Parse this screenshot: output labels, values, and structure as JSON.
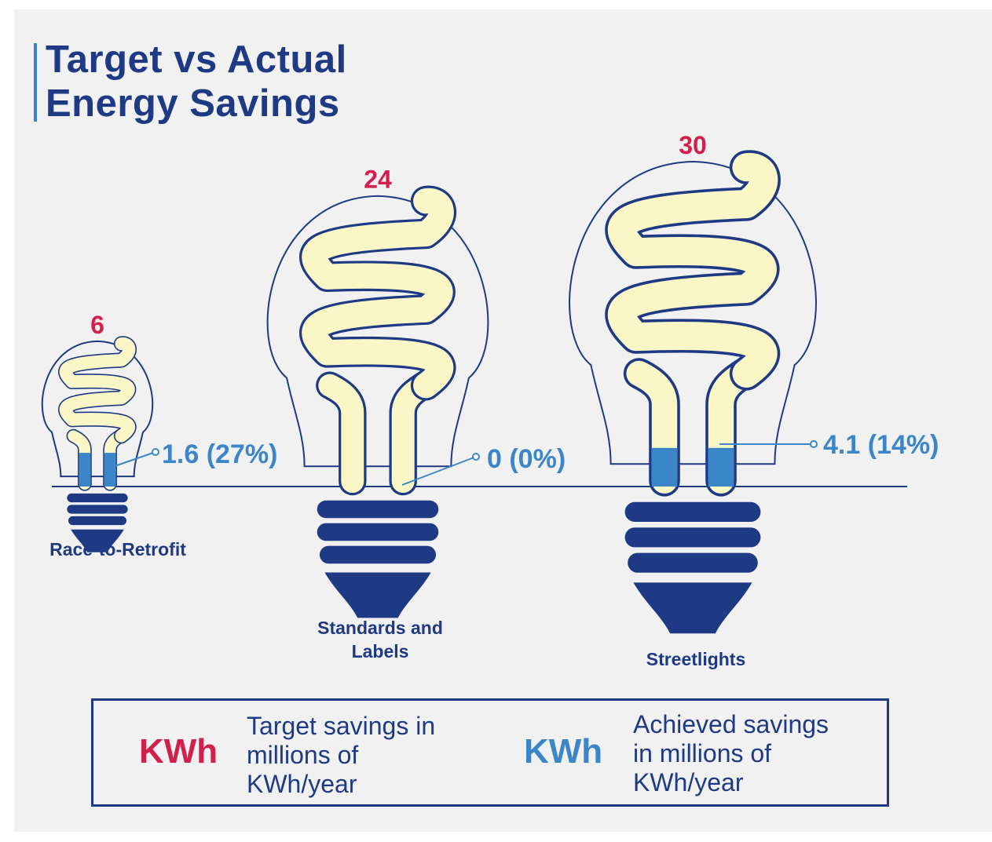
{
  "title": {
    "line1": "Target vs Actual",
    "line2": "Energy Savings"
  },
  "colors": {
    "background": "#f1f1f1",
    "navy": "#1e3a84",
    "target_red": "#d21f4d",
    "achieved_blue": "#3b86c8",
    "coil_fill": "#fbf6c6"
  },
  "chart_data": {
    "type": "bar",
    "encoding": "bulb size proportional to target; filled coil portion shows achieved share",
    "categories": [
      "Race-to-Retrofit",
      "Standards and Labels",
      "Streetlights"
    ],
    "series": [
      {
        "name": "Target savings in millions of KWh/year",
        "values": [
          6,
          24,
          30
        ],
        "color": "#d21f4d"
      },
      {
        "name": "Achieved savings in millions of KWh/year",
        "values": [
          1.6,
          0,
          4.1
        ],
        "color": "#3b86c8"
      }
    ],
    "achieved_labels": [
      "1.6 (27%)",
      "0 (0%)",
      "4.1 (14%)"
    ],
    "target_labels": [
      "6",
      "24",
      "30"
    ],
    "category_labels": [
      [
        "Race-to-Retrofit"
      ],
      [
        "Standards and",
        "Labels"
      ],
      [
        "Streetlights"
      ]
    ]
  },
  "legend": {
    "target": {
      "unit": "KWh",
      "lines": [
        "Target savings in",
        "millions of",
        "KWh/year"
      ]
    },
    "achieved": {
      "unit": "KWh",
      "lines": [
        "Achieved savings",
        "in millions of",
        "KWh/year"
      ]
    }
  }
}
